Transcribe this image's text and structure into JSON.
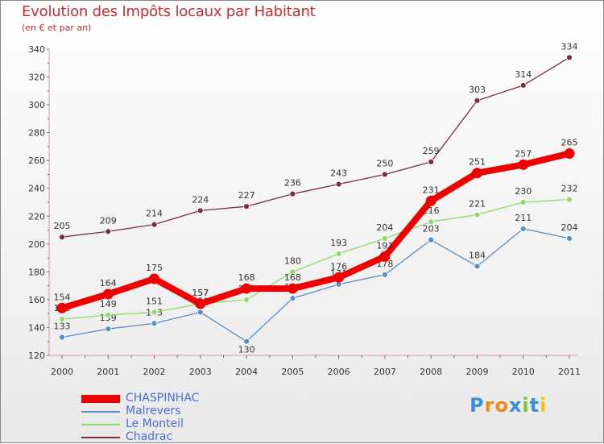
{
  "header": {
    "title": "Evolution des Impôts locaux par Habitant",
    "subtitle": "(en € et par an)"
  },
  "chart_data": {
    "type": "line",
    "title": "Evolution des Impôts locaux par Habitant",
    "subtitle": "(en € et par an)",
    "xlabel": "",
    "ylabel": "",
    "ylim": [
      120,
      340
    ],
    "yticks": [
      120,
      140,
      160,
      180,
      200,
      220,
      240,
      260,
      280,
      300,
      320,
      340
    ],
    "categories": [
      "2000",
      "2001",
      "2002",
      "2003",
      "2004",
      "2005",
      "2006",
      "2007",
      "2008",
      "2009",
      "2010",
      "2011"
    ],
    "grid": false,
    "legend": "bottom-left",
    "series": [
      {
        "name": "Chadrac",
        "color": "#7a2e3a",
        "values": [
          205,
          209,
          214,
          224,
          227,
          236,
          243,
          250,
          259,
          303,
          314,
          334
        ]
      },
      {
        "name": "Malrevers",
        "color": "#5b8fc4",
        "values": [
          133,
          139,
          143,
          151,
          130,
          161,
          171,
          178,
          203,
          184,
          211,
          204
        ]
      },
      {
        "name": "Le Monteil",
        "color": "#8ed96a",
        "values": [
          146,
          149,
          151,
          157,
          160,
          180,
          193,
          204,
          216,
          221,
          230,
          232
        ]
      },
      {
        "name": "CHASPINHAC",
        "color": "#ee0000",
        "values": [
          154,
          164,
          175,
          157,
          168,
          168,
          176,
          191,
          231,
          251,
          257,
          265
        ]
      }
    ]
  },
  "legend": {
    "items": [
      {
        "label": "CHASPINHAC",
        "color": "#ee0000"
      },
      {
        "label": "Malrevers",
        "color": "#5b8fc4"
      },
      {
        "label": "Le Monteil",
        "color": "#8ed96a"
      },
      {
        "label": "Chadrac",
        "color": "#7a2e3a"
      }
    ]
  },
  "brand": {
    "letters": [
      "P",
      "r",
      "o",
      "x",
      "i",
      "t",
      "i"
    ],
    "colors": [
      "#3a8fd8",
      "#f08a1c",
      "#f08a1c",
      "#3a8fd8",
      "#7cc234",
      "#3a8fd8",
      "#f0c01c"
    ]
  }
}
